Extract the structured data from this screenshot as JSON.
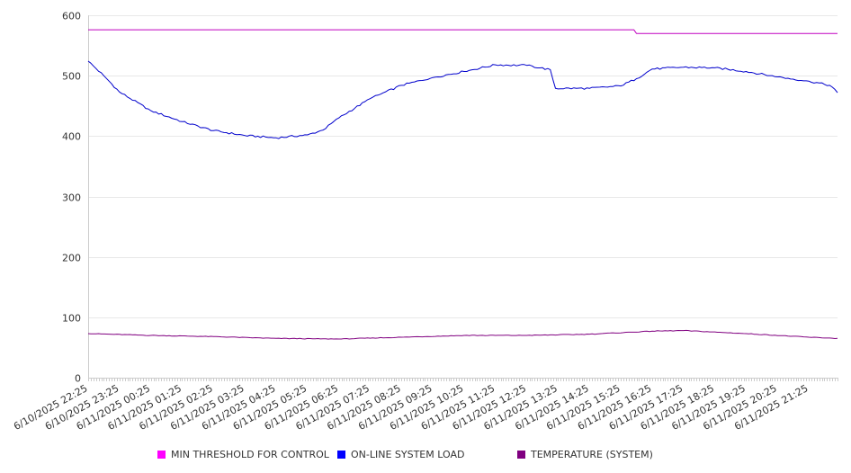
{
  "chart_data": {
    "type": "line",
    "title": "",
    "xlabel": "",
    "ylabel": "",
    "ylim": [
      0,
      600
    ],
    "yticks": [
      0,
      100,
      200,
      300,
      400,
      500,
      600
    ],
    "grid": "horizontal",
    "legend_position": "bottom",
    "x_tick_labels": [
      "6/10/2025 22:25",
      "6/10/2025 23:25",
      "6/11/2025 00:25",
      "6/11/2025 01:25",
      "6/11/2025 02:25",
      "6/11/2025 03:25",
      "6/11/2025 04:25",
      "6/11/2025 05:25",
      "6/11/2025 06:25",
      "6/11/2025 07:25",
      "6/11/2025 08:25",
      "6/11/2025 09:25",
      "6/11/2025 10:25",
      "6/11/2025 11:25",
      "6/11/2025 12:25",
      "6/11/2025 13:25",
      "6/11/2025 14:25",
      "6/11/2025 15:25",
      "6/11/2025 16:25",
      "6/11/2025 17:25",
      "6/11/2025 18:25",
      "6/11/2025 19:25",
      "6/11/2025 20:25",
      "6/11/2025 21:25"
    ],
    "series": [
      {
        "name": "MIN THRESHOLD FOR CONTROL",
        "color": "#c000c0",
        "x": [
          "6/10/2025 22:25",
          "6/11/2025 15:50",
          "6/11/2025 15:55",
          "6/11/2025 22:20"
        ],
        "values": [
          576,
          576,
          570,
          570
        ]
      },
      {
        "name": "ON-LINE SYSTEM LOAD",
        "color": "#0000cc",
        "x": [
          "6/10/2025 22:25",
          "6/10/2025 22:55",
          "6/10/2025 23:25",
          "6/11/2025 00:25",
          "6/11/2025 01:25",
          "6/11/2025 02:25",
          "6/11/2025 03:25",
          "6/11/2025 04:25",
          "6/11/2025 05:25",
          "6/11/2025 05:55",
          "6/11/2025 06:25",
          "6/11/2025 07:25",
          "6/11/2025 08:25",
          "6/11/2025 09:25",
          "6/11/2025 10:25",
          "6/11/2025 11:25",
          "6/11/2025 12:25",
          "6/11/2025 13:10",
          "6/11/2025 13:20",
          "6/11/2025 14:25",
          "6/11/2025 15:25",
          "6/11/2025 15:55",
          "6/11/2025 16:25",
          "6/11/2025 17:25",
          "6/11/2025 18:25",
          "6/11/2025 19:25",
          "6/11/2025 20:25",
          "6/11/2025 21:25",
          "6/11/2025 22:05",
          "6/11/2025 22:20"
        ],
        "values": [
          524,
          500,
          473,
          442,
          424,
          409,
          401,
          397,
          402,
          410,
          430,
          462,
          484,
          497,
          507,
          518,
          517,
          510,
          479,
          479,
          483,
          495,
          511,
          514,
          513,
          507,
          498,
          491,
          484,
          472
        ]
      },
      {
        "name": "TEMPERATURE (SYSTEM)",
        "color": "#800080",
        "x": [
          "6/10/2025 22:25",
          "6/11/2025 00:25",
          "6/11/2025 02:25",
          "6/11/2025 04:25",
          "6/11/2025 06:25",
          "6/11/2025 08:25",
          "6/11/2025 10:25",
          "6/11/2025 12:25",
          "6/11/2025 14:25",
          "6/11/2025 16:25",
          "6/11/2025 17:25",
          "6/11/2025 19:25",
          "6/11/2025 21:25",
          "6/11/2025 22:20"
        ],
        "values": [
          73,
          70,
          68,
          65,
          64,
          67,
          70,
          70,
          72,
          77,
          78,
          73,
          67,
          65
        ]
      }
    ]
  }
}
